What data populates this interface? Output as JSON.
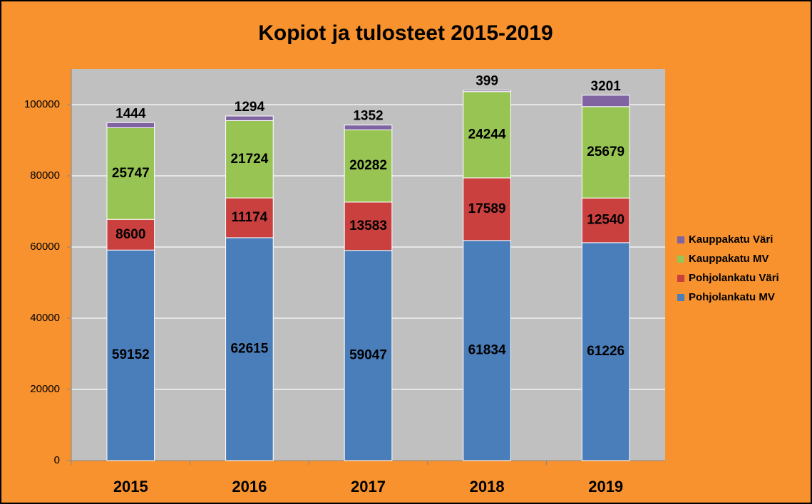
{
  "chart_data": {
    "type": "stacked_bar",
    "title": "Kopiot ja tulosteet 2015-2019",
    "categories": [
      "2015",
      "2016",
      "2017",
      "2018",
      "2019"
    ],
    "series": [
      {
        "name": "Pohjolankatu MV",
        "color": "#4a7ebb",
        "values": [
          59152,
          62615,
          59047,
          61834,
          61226
        ]
      },
      {
        "name": "Pohjolankatu Väri",
        "color": "#c9403f",
        "values": [
          8600,
          11174,
          13583,
          17589,
          12540
        ]
      },
      {
        "name": "Kauppakatu MV",
        "color": "#98c454",
        "values": [
          25747,
          21724,
          20282,
          24244,
          25679
        ]
      },
      {
        "name": "Kauppakatu Väri",
        "color": "#8064a2",
        "values": [
          1444,
          1294,
          1352,
          399,
          3201
        ]
      }
    ],
    "ylim": [
      0,
      110000
    ],
    "yticks": [
      0,
      20000,
      40000,
      60000,
      80000,
      100000
    ],
    "grid": true,
    "legend": "right"
  }
}
